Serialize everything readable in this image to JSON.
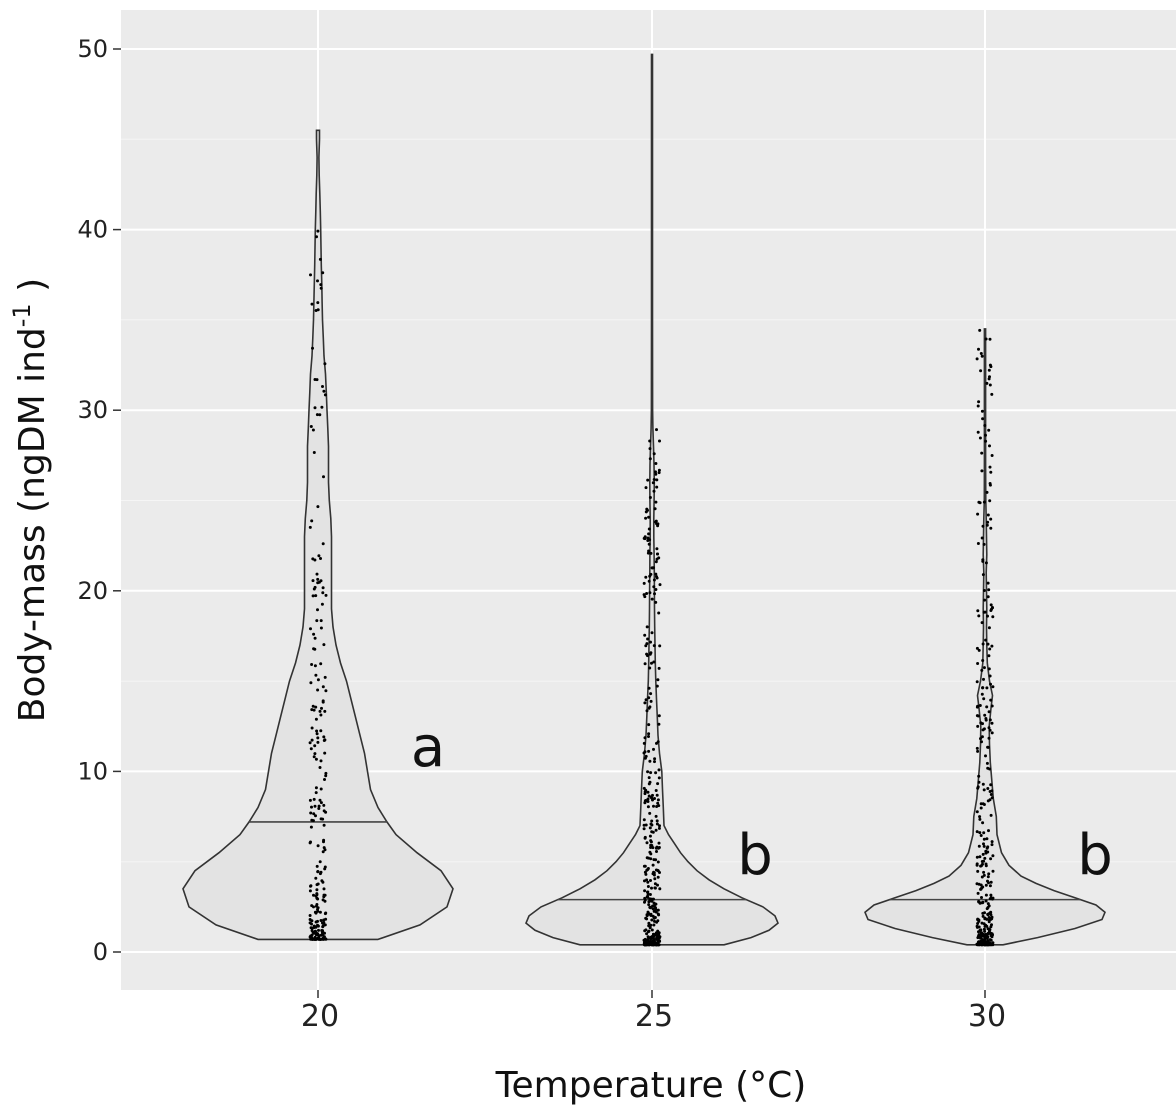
{
  "chart_data": {
    "type": "violin",
    "xlabel": "Temperature (°C)",
    "ylabel_main": "Body-mass (ngDM ind",
    "ylabel_sup": "-1",
    "ylabel_end": " )",
    "ylim": [
      -2,
      52
    ],
    "yticks": [
      "0",
      "10",
      "20",
      "30",
      "40",
      "50"
    ],
    "grid": true,
    "background": "#ebebeb",
    "violin_fill": "#e3e3e3",
    "violin_stroke": "#333333",
    "categories": [
      "20",
      "25",
      "30"
    ],
    "groups": [
      {
        "category": "20",
        "letter": "a",
        "median": 7.2,
        "min": 0.7,
        "max": 45.5,
        "profile": [
          [
            0.7,
            0.4
          ],
          [
            1.5,
            0.68
          ],
          [
            2.5,
            0.86
          ],
          [
            3.5,
            0.9
          ],
          [
            4.5,
            0.82
          ],
          [
            5.5,
            0.66
          ],
          [
            6.5,
            0.52
          ],
          [
            7.2,
            0.46
          ],
          [
            8,
            0.4
          ],
          [
            9,
            0.35
          ],
          [
            10,
            0.33
          ],
          [
            11,
            0.31
          ],
          [
            12,
            0.28
          ],
          [
            13,
            0.25
          ],
          [
            14,
            0.22
          ],
          [
            15,
            0.19
          ],
          [
            16,
            0.15
          ],
          [
            17,
            0.12
          ],
          [
            18,
            0.1
          ],
          [
            19,
            0.09
          ],
          [
            20,
            0.09
          ],
          [
            21,
            0.09
          ],
          [
            22,
            0.09
          ],
          [
            23,
            0.09
          ],
          [
            24,
            0.085
          ],
          [
            25,
            0.075
          ],
          [
            26,
            0.07
          ],
          [
            27,
            0.07
          ],
          [
            28,
            0.07
          ],
          [
            29,
            0.065
          ],
          [
            30,
            0.06
          ],
          [
            31,
            0.055
          ],
          [
            32,
            0.05
          ],
          [
            33,
            0.04
          ],
          [
            34,
            0.035
          ],
          [
            35,
            0.03
          ],
          [
            36,
            0.027
          ],
          [
            37,
            0.025
          ],
          [
            38,
            0.022
          ],
          [
            39,
            0.02
          ],
          [
            40,
            0.018
          ],
          [
            41,
            0.015
          ],
          [
            42,
            0.012
          ],
          [
            43,
            0.008
          ],
          [
            44,
            0.006
          ],
          [
            45,
            0.01
          ],
          [
            45.5,
            0.01
          ]
        ],
        "points_n": 260,
        "points_range": [
          0.7,
          40.5
        ]
      },
      {
        "category": "25",
        "letter": "b",
        "median": 2.9,
        "min": 0.4,
        "max": 49.7,
        "profile": [
          [
            0.4,
            0.48
          ],
          [
            0.8,
            0.66
          ],
          [
            1.2,
            0.78
          ],
          [
            1.6,
            0.84
          ],
          [
            2,
            0.82
          ],
          [
            2.5,
            0.74
          ],
          [
            3,
            0.6
          ],
          [
            3.5,
            0.48
          ],
          [
            4,
            0.38
          ],
          [
            4.5,
            0.3
          ],
          [
            5,
            0.24
          ],
          [
            5.5,
            0.19
          ],
          [
            6,
            0.15
          ],
          [
            6.5,
            0.11
          ],
          [
            7,
            0.08
          ],
          [
            8,
            0.075
          ],
          [
            9,
            0.07
          ],
          [
            10,
            0.065
          ],
          [
            11,
            0.05
          ],
          [
            12,
            0.04
          ],
          [
            13,
            0.035
          ],
          [
            14,
            0.03
          ],
          [
            15,
            0.025
          ],
          [
            16,
            0.022
          ],
          [
            17,
            0.02
          ],
          [
            18,
            0.018
          ],
          [
            19,
            0.017
          ],
          [
            20,
            0.016
          ],
          [
            21,
            0.015
          ],
          [
            22,
            0.014
          ],
          [
            23,
            0.012
          ],
          [
            24,
            0.012
          ],
          [
            25,
            0.014
          ],
          [
            26,
            0.015
          ],
          [
            27,
            0.013
          ],
          [
            28,
            0.01
          ],
          [
            29,
            0.006
          ],
          [
            30,
            0.004
          ],
          [
            35,
            0.003
          ],
          [
            40,
            0.003
          ],
          [
            45,
            0.003
          ],
          [
            49.7,
            0.003
          ]
        ],
        "points_n": 420,
        "points_range": [
          0.4,
          29.3
        ]
      },
      {
        "category": "30",
        "letter": "b",
        "median": 2.9,
        "min": 0.4,
        "max": 34.5,
        "profile": [
          [
            0.4,
            0.12
          ],
          [
            0.8,
            0.35
          ],
          [
            1.3,
            0.6
          ],
          [
            1.8,
            0.78
          ],
          [
            2.2,
            0.8
          ],
          [
            2.6,
            0.74
          ],
          [
            3,
            0.6
          ],
          [
            3.4,
            0.46
          ],
          [
            3.8,
            0.34
          ],
          [
            4.2,
            0.24
          ],
          [
            4.8,
            0.16
          ],
          [
            5.5,
            0.11
          ],
          [
            6.5,
            0.08
          ],
          [
            7.5,
            0.075
          ],
          [
            8.5,
            0.055
          ],
          [
            9.5,
            0.045
          ],
          [
            10.5,
            0.035
          ],
          [
            11.5,
            0.03
          ],
          [
            12.5,
            0.028
          ],
          [
            13.5,
            0.04
          ],
          [
            14.2,
            0.05
          ],
          [
            15,
            0.03
          ],
          [
            16,
            0.015
          ],
          [
            17,
            0.012
          ],
          [
            18,
            0.01
          ],
          [
            19,
            0.012
          ],
          [
            20,
            0.01
          ],
          [
            21,
            0.008
          ],
          [
            22,
            0.012
          ],
          [
            23,
            0.01
          ],
          [
            24,
            0.008
          ],
          [
            25,
            0.005
          ],
          [
            27,
            0.004
          ],
          [
            30,
            0.004
          ],
          [
            32,
            0.004
          ],
          [
            34.5,
            0.004
          ]
        ],
        "points_n": 380,
        "points_range": [
          0.4,
          34.5
        ]
      }
    ]
  }
}
